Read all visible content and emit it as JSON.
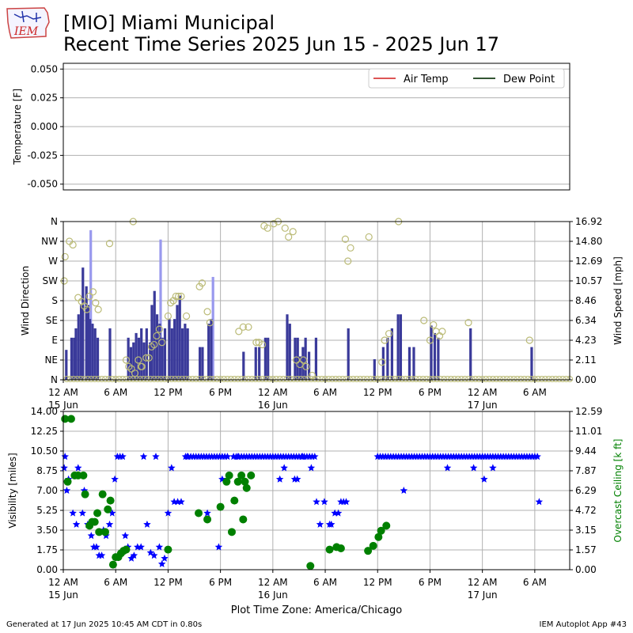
{
  "header": {
    "title_line1": "[MIO] Miami Municipal",
    "title_line2": "Recent Time Series 2025 Jun 15 - 2025 Jun 17",
    "logo_text": "IEM"
  },
  "footer": {
    "left": "Generated at 17 Jun 2025 10:45 AM CDT in 0.80s",
    "right": "IEM Autoplot App #43"
  },
  "colors": {
    "air_temp": "#dd5555",
    "dew_point": "#335533",
    "wind_speed_bar": "#3a3a9a",
    "gust_bar": "#9999ee",
    "wind_dir_marker": "#bbbb77",
    "visibility": "#0000ff",
    "ceiling": "#008000",
    "grid": "#b0b0b0"
  },
  "chart_data": [
    {
      "type": "line",
      "ylabel": "Temperature [F]",
      "ylim": [
        -0.055,
        0.055
      ],
      "yticks": [
        "0.050",
        "0.025",
        "0.000",
        "-0.025",
        "-0.050"
      ],
      "ytick_values": [
        0.05,
        0.025,
        0.0,
        -0.025,
        -0.05
      ],
      "legend": {
        "placement": "top-right",
        "columns": 2
      },
      "series": [
        {
          "name": "Air Temp",
          "values": []
        },
        {
          "name": "Dew Point",
          "values": []
        }
      ],
      "grid": true
    },
    {
      "type": "bar",
      "ylabel_left": "Wind Direction",
      "ylabel_right": "Wind Speed [mph]",
      "left_ticks": [
        "N",
        "NE",
        "E",
        "SE",
        "S",
        "SW",
        "W",
        "NW",
        "N"
      ],
      "left_tick_degrees": [
        0,
        45,
        90,
        135,
        180,
        225,
        270,
        315,
        360
      ],
      "right_ticks": [
        "0.00",
        "2.11",
        "4.23",
        "6.34",
        "8.46",
        "10.57",
        "12.69",
        "14.80",
        "16.92"
      ],
      "ylim_right": [
        0,
        16.92
      ],
      "x_hours": [
        0,
        54
      ],
      "xticks": [
        "12 AM",
        "6 AM",
        "12 PM",
        "6 PM",
        "12 AM",
        "6 AM",
        "12 PM",
        "6 PM",
        "12 AM",
        "6 AM"
      ],
      "xtick_hours": [
        0,
        6,
        12,
        18,
        24,
        30,
        36,
        42,
        48,
        54
      ],
      "xtick_dates": [
        {
          "hour": 0,
          "label": "15 Jun"
        },
        {
          "hour": 24,
          "label": "16 Jun"
        },
        {
          "hour": 48,
          "label": "17 Jun"
        }
      ],
      "gust_bars": [
        [
          3.0,
          16
        ],
        [
          11.0,
          15
        ],
        [
          17.0,
          11
        ]
      ],
      "wind_speed_bars": [
        [
          0.2,
          3.2
        ],
        [
          0.8,
          4.5
        ],
        [
          1.1,
          4.5
        ],
        [
          1.3,
          5.5
        ],
        [
          1.6,
          7
        ],
        [
          1.9,
          8
        ],
        [
          2.1,
          12
        ],
        [
          2.5,
          10
        ],
        [
          2.7,
          8
        ],
        [
          2.9,
          6.5
        ],
        [
          3.2,
          6
        ],
        [
          3.5,
          5.5
        ],
        [
          3.8,
          4.5
        ],
        [
          5.2,
          5.5
        ],
        [
          7.3,
          4.5
        ],
        [
          7.6,
          3.5
        ],
        [
          7.9,
          4
        ],
        [
          8.2,
          5
        ],
        [
          8.5,
          4.5
        ],
        [
          8.8,
          5.5
        ],
        [
          9.1,
          4
        ],
        [
          9.4,
          5.5
        ],
        [
          9.8,
          4
        ],
        [
          10.0,
          8
        ],
        [
          10.3,
          9.5
        ],
        [
          10.6,
          7
        ],
        [
          10.9,
          6
        ],
        [
          11.2,
          4.5
        ],
        [
          11.5,
          5.5
        ],
        [
          12.0,
          6.5
        ],
        [
          12.3,
          5.5
        ],
        [
          12.6,
          6.5
        ],
        [
          12.9,
          8
        ],
        [
          13.2,
          9
        ],
        [
          13.5,
          5.5
        ],
        [
          13.8,
          6
        ],
        [
          14.1,
          5.5
        ],
        [
          15.5,
          3.5
        ],
        [
          15.8,
          3.5
        ],
        [
          16.5,
          6
        ],
        [
          16.8,
          6.5
        ],
        [
          20.5,
          3
        ],
        [
          21.9,
          3.5
        ],
        [
          22.3,
          3.5
        ],
        [
          23.0,
          4.5
        ],
        [
          23.3,
          4.5
        ],
        [
          25.5,
          7
        ],
        [
          25.8,
          6
        ],
        [
          26.4,
          4.5
        ],
        [
          26.7,
          4.5
        ],
        [
          27.0,
          2.5
        ],
        [
          27.3,
          3.5
        ],
        [
          27.6,
          4.5
        ],
        [
          28.0,
          3
        ],
        [
          28.8,
          4.5
        ],
        [
          32.5,
          5.5
        ],
        [
          35.5,
          2.2
        ],
        [
          36.5,
          3.5
        ],
        [
          37.0,
          4.5
        ],
        [
          37.5,
          5.5
        ],
        [
          38.2,
          7
        ],
        [
          38.5,
          7
        ],
        [
          39.5,
          3.5
        ],
        [
          40.0,
          3.5
        ],
        [
          42.0,
          5.8
        ],
        [
          42.4,
          5
        ],
        [
          42.8,
          4.5
        ],
        [
          46.5,
          5.5
        ],
        [
          53.5,
          3.5
        ]
      ],
      "calm_markers_deg": 0,
      "wind_dir_points": [
        [
          0.1,
          225
        ],
        [
          0.2,
          280
        ],
        [
          0.7,
          315
        ],
        [
          1.1,
          307
        ],
        [
          1.7,
          187
        ],
        [
          2.1,
          178
        ],
        [
          2.4,
          168
        ],
        [
          2.7,
          160
        ],
        [
          3.0,
          190
        ],
        [
          3.4,
          200
        ],
        [
          3.7,
          175
        ],
        [
          4.0,
          160
        ],
        [
          5.3,
          310
        ],
        [
          7.2,
          45
        ],
        [
          7.5,
          30
        ],
        [
          7.8,
          25
        ],
        [
          8.0,
          360
        ],
        [
          8.2,
          15
        ],
        [
          8.6,
          45
        ],
        [
          8.9,
          30
        ],
        [
          9.0,
          30
        ],
        [
          9.5,
          50
        ],
        [
          9.8,
          50
        ],
        [
          10.1,
          75
        ],
        [
          10.4,
          80
        ],
        [
          10.7,
          100
        ],
        [
          11.0,
          115
        ],
        [
          11.3,
          85
        ],
        [
          12.0,
          145
        ],
        [
          12.3,
          175
        ],
        [
          12.6,
          180
        ],
        [
          12.9,
          190
        ],
        [
          13.2,
          190
        ],
        [
          13.5,
          190
        ],
        [
          14.1,
          145
        ],
        [
          15.6,
          212
        ],
        [
          15.9,
          220
        ],
        [
          16.5,
          155
        ],
        [
          16.8,
          130
        ],
        [
          20.1,
          110
        ],
        [
          20.6,
          120
        ],
        [
          21.2,
          120
        ],
        [
          22.1,
          85
        ],
        [
          22.4,
          85
        ],
        [
          22.8,
          80
        ],
        [
          23.0,
          350
        ],
        [
          23.4,
          345
        ],
        [
          24.1,
          355
        ],
        [
          24.6,
          360
        ],
        [
          25.4,
          345
        ],
        [
          25.8,
          325
        ],
        [
          26.3,
          337
        ],
        [
          26.7,
          45
        ],
        [
          27.1,
          35
        ],
        [
          27.5,
          45
        ],
        [
          27.8,
          30
        ],
        [
          28.5,
          10
        ],
        [
          32.3,
          320
        ],
        [
          32.6,
          270
        ],
        [
          32.9,
          300
        ],
        [
          35.0,
          325
        ],
        [
          36.5,
          40
        ],
        [
          36.8,
          90
        ],
        [
          37.3,
          105
        ],
        [
          38.4,
          360
        ],
        [
          41.3,
          135
        ],
        [
          42.0,
          90
        ],
        [
          42.4,
          125
        ],
        [
          42.7,
          110
        ],
        [
          43.1,
          100
        ],
        [
          43.4,
          110
        ],
        [
          46.4,
          130
        ],
        [
          53.4,
          90
        ]
      ],
      "grid": true
    },
    {
      "type": "scatter",
      "ylabel_left": "Visibility [miles]",
      "ylabel_right": "Overcast Ceiling [k ft]",
      "left_ticks": [
        "0.00",
        "1.75",
        "3.50",
        "5.25",
        "7.00",
        "8.75",
        "10.50",
        "12.25",
        "14.00"
      ],
      "ylim_left": [
        0,
        14
      ],
      "right_ticks": [
        "0.00",
        "1.57",
        "3.15",
        "4.72",
        "6.29",
        "7.87",
        "9.44",
        "11.01",
        "12.59"
      ],
      "ylim_right": [
        0,
        12.59
      ],
      "xlabel": "Plot Time Zone: America/Chicago",
      "xticks": [
        "12 AM",
        "6 AM",
        "12 PM",
        "6 PM",
        "12 AM",
        "6 AM",
        "12 PM",
        "6 PM",
        "12 AM",
        "6 AM"
      ],
      "xtick_dates": [
        "15 Jun",
        "16 Jun",
        "17 Jun"
      ],
      "visibility": [
        [
          0.1,
          9
        ],
        [
          0.2,
          10
        ],
        [
          0.4,
          7
        ],
        [
          0.6,
          8
        ],
        [
          1.1,
          5
        ],
        [
          1.5,
          4
        ],
        [
          1.7,
          9
        ],
        [
          2.2,
          5
        ],
        [
          2.4,
          7
        ],
        [
          2.8,
          4
        ],
        [
          3.2,
          3
        ],
        [
          3.5,
          2
        ],
        [
          3.8,
          2
        ],
        [
          4.1,
          1.25
        ],
        [
          4.4,
          1.25
        ],
        [
          4.6,
          3.5
        ],
        [
          4.9,
          3
        ],
        [
          5.3,
          4
        ],
        [
          5.6,
          5
        ],
        [
          5.9,
          8
        ],
        [
          6.2,
          10
        ],
        [
          6.5,
          10
        ],
        [
          6.8,
          10
        ],
        [
          7.1,
          3
        ],
        [
          7.4,
          2
        ],
        [
          7.8,
          1
        ],
        [
          8.1,
          1.25
        ],
        [
          8.5,
          2
        ],
        [
          8.9,
          2
        ],
        [
          9.2,
          10
        ],
        [
          9.6,
          4
        ],
        [
          10.0,
          1.5
        ],
        [
          10.4,
          1.25
        ],
        [
          10.6,
          10
        ],
        [
          11.0,
          2
        ],
        [
          11.3,
          0.5
        ],
        [
          11.6,
          1
        ],
        [
          12.0,
          5
        ],
        [
          12.4,
          9
        ],
        [
          12.7,
          6
        ],
        [
          13.1,
          6
        ],
        [
          13.5,
          6
        ],
        [
          14.0,
          10
        ],
        [
          14.2,
          10
        ]
      ],
      "visibility_flat": {
        "value": 10,
        "ranges": [
          [
            14.3,
            19.0
          ],
          [
            19.5,
            29.0
          ],
          [
            36.0,
            54.5
          ]
        ],
        "dips": [
          [
            16.5,
            5
          ],
          [
            17.8,
            2
          ],
          [
            18.2,
            8
          ],
          [
            20.0,
            10
          ],
          [
            24.8,
            8
          ],
          [
            25.3,
            9
          ],
          [
            26.5,
            8
          ],
          [
            26.8,
            8
          ],
          [
            27.4,
            10
          ],
          [
            28.4,
            9
          ],
          [
            29.0,
            6
          ],
          [
            29.4,
            4
          ],
          [
            29.9,
            6
          ],
          [
            30.5,
            4
          ],
          [
            30.7,
            4
          ],
          [
            31.1,
            5
          ],
          [
            31.5,
            5
          ],
          [
            31.8,
            6
          ],
          [
            32.1,
            6
          ],
          [
            32.4,
            6
          ],
          [
            39.0,
            7
          ],
          [
            44.0,
            9
          ],
          [
            47.0,
            9
          ],
          [
            48.2,
            8
          ],
          [
            49.2,
            9
          ],
          [
            54.5,
            6
          ]
        ]
      },
      "ceiling": [
        [
          0.2,
          12
        ],
        [
          0.9,
          12
        ],
        [
          0.5,
          7
        ],
        [
          1.3,
          7.5
        ],
        [
          1.7,
          7.5
        ],
        [
          2.3,
          7.5
        ],
        [
          2.5,
          6
        ],
        [
          3.0,
          3.5
        ],
        [
          3.3,
          3.8
        ],
        [
          3.6,
          3.8
        ],
        [
          3.9,
          4.5
        ],
        [
          4.1,
          3
        ],
        [
          4.5,
          6
        ],
        [
          4.8,
          3
        ],
        [
          5.1,
          4.8
        ],
        [
          5.4,
          5.5
        ],
        [
          5.7,
          0.4
        ],
        [
          6.0,
          1
        ],
        [
          6.3,
          1
        ],
        [
          6.6,
          1.3
        ],
        [
          6.9,
          1.5
        ],
        [
          7.2,
          1.6
        ],
        [
          12.0,
          1.6
        ],
        [
          15.5,
          4.5
        ],
        [
          16.5,
          4
        ],
        [
          18.0,
          5
        ],
        [
          18.7,
          7
        ],
        [
          19.0,
          7.5
        ],
        [
          19.3,
          3
        ],
        [
          19.6,
          5.5
        ],
        [
          20.0,
          7
        ],
        [
          20.4,
          7.5
        ],
        [
          20.6,
          4
        ],
        [
          20.8,
          7
        ],
        [
          21.0,
          6.5
        ],
        [
          21.5,
          7.5
        ],
        [
          28.3,
          0.3
        ],
        [
          30.5,
          1.6
        ],
        [
          31.3,
          1.8
        ],
        [
          31.8,
          1.7
        ],
        [
          34.9,
          1.5
        ],
        [
          35.5,
          1.9
        ],
        [
          36.1,
          2.6
        ],
        [
          36.4,
          3.1
        ],
        [
          37.0,
          3.5
        ]
      ],
      "grid": true
    }
  ]
}
